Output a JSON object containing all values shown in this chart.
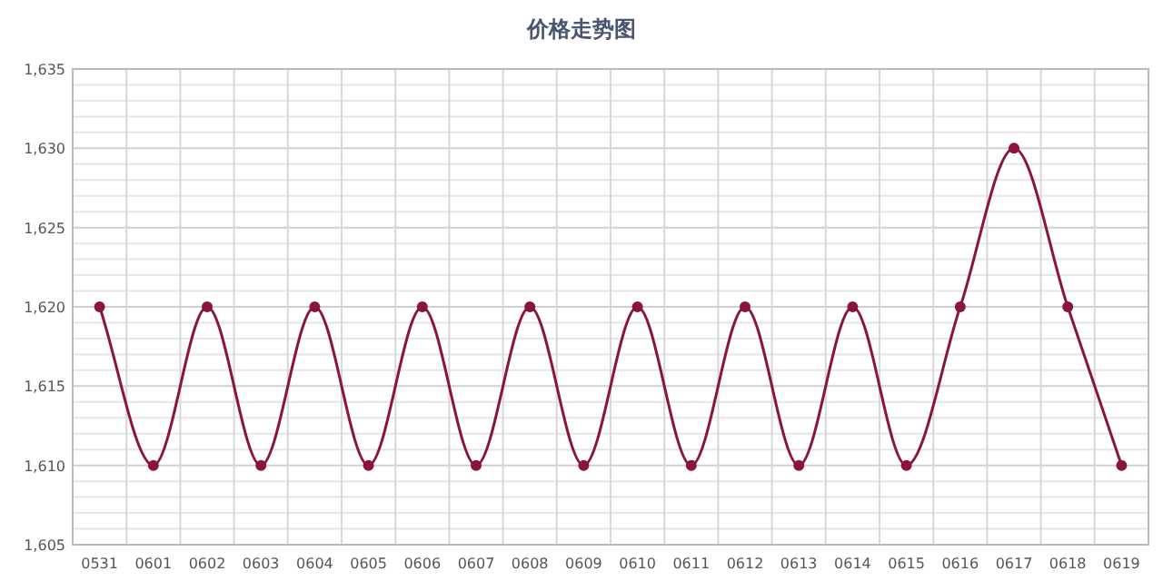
{
  "chart_data": {
    "type": "line",
    "title": "价格走势图",
    "categories": [
      "0531",
      "0601",
      "0602",
      "0603",
      "0604",
      "0605",
      "0606",
      "0607",
      "0608",
      "0609",
      "0610",
      "0611",
      "0612",
      "0613",
      "0614",
      "0615",
      "0616",
      "0617",
      "0618",
      "0619"
    ],
    "values": [
      1620,
      1610,
      1620,
      1610,
      1620,
      1610,
      1620,
      1610,
      1620,
      1610,
      1620,
      1610,
      1620,
      1610,
      1620,
      1610,
      1620,
      1630,
      1620,
      1610
    ],
    "color": "#8b1538",
    "ylim": [
      1605,
      1635
    ],
    "yticks": [
      {
        "value": 1605,
        "label": "1,605"
      },
      {
        "value": 1606,
        "label": null
      },
      {
        "value": 1607,
        "label": null
      },
      {
        "value": 1608,
        "label": null
      },
      {
        "value": 1609,
        "label": null
      },
      {
        "value": 1610,
        "label": "1,610"
      },
      {
        "value": 1611,
        "label": null
      },
      {
        "value": 1612,
        "label": null
      },
      {
        "value": 1613,
        "label": null
      },
      {
        "value": 1614,
        "label": null
      },
      {
        "value": 1615,
        "label": "1,615"
      },
      {
        "value": 1616,
        "label": null
      },
      {
        "value": 1617,
        "label": null
      },
      {
        "value": 1618,
        "label": null
      },
      {
        "value": 1619,
        "label": null
      },
      {
        "value": 1620,
        "label": "1,620"
      },
      {
        "value": 1621,
        "label": null
      },
      {
        "value": 1622,
        "label": null
      },
      {
        "value": 1623,
        "label": null
      },
      {
        "value": 1624,
        "label": null
      },
      {
        "value": 1625,
        "label": "1,625"
      },
      {
        "value": 1626,
        "label": null
      },
      {
        "value": 1627,
        "label": null
      },
      {
        "value": 1628,
        "label": null
      },
      {
        "value": 1629,
        "label": null
      },
      {
        "value": 1630,
        "label": "1,630"
      },
      {
        "value": 1631,
        "label": null
      },
      {
        "value": 1632,
        "label": null
      },
      {
        "value": 1633,
        "label": null
      },
      {
        "value": 1634,
        "label": null
      },
      {
        "value": 1635,
        "label": "1,635"
      }
    ],
    "grid": true,
    "marker": "circle",
    "line_style": "solid"
  }
}
